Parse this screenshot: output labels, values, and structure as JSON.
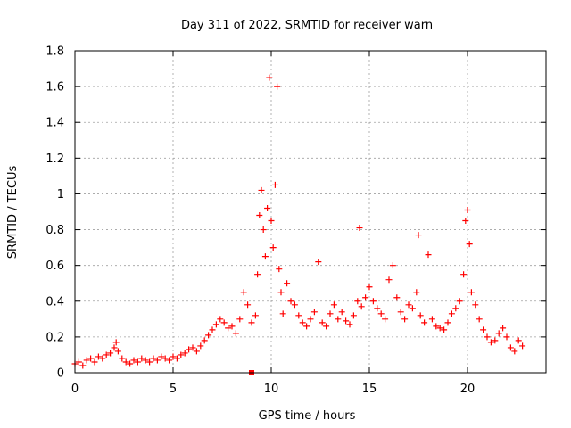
{
  "chart_data": {
    "type": "scatter",
    "title": "Day 311 of 2022, SRMTID for receiver warn",
    "xlabel": "GPS time / hours",
    "ylabel": "SRMTID / TECUs",
    "xlim": [
      0,
      24
    ],
    "ylim": [
      0,
      1.8
    ],
    "grid": true,
    "marker": "+",
    "marker_color": "#ff0000",
    "x_ticks": [
      0,
      5,
      10,
      15,
      20
    ],
    "x_tick_labels": [
      "0",
      "5",
      "10",
      "15",
      "20"
    ],
    "y_ticks": [
      0,
      0.2,
      0.4,
      0.6,
      0.8,
      1.0,
      1.2,
      1.4,
      1.6,
      1.8
    ],
    "y_tick_labels": [
      "0",
      "0.2",
      "0.4",
      "0.6",
      "0.8",
      "1",
      "1.2",
      "1.4",
      "1.6",
      "1.8"
    ],
    "series": [
      {
        "name": "SRMTID",
        "x": [
          0.0,
          0.2,
          0.4,
          0.6,
          0.8,
          1.0,
          1.2,
          1.4,
          1.6,
          1.8,
          2.0,
          2.1,
          2.2,
          2.4,
          2.6,
          2.8,
          3.0,
          3.2,
          3.4,
          3.6,
          3.8,
          4.0,
          4.2,
          4.4,
          4.6,
          4.8,
          5.0,
          5.2,
          5.4,
          5.6,
          5.8,
          6.0,
          6.2,
          6.4,
          6.6,
          6.8,
          7.0,
          7.2,
          7.4,
          7.6,
          7.8,
          8.0,
          8.2,
          8.4,
          8.6,
          8.8,
          9.0,
          9.2,
          9.3,
          9.4,
          9.5,
          9.6,
          9.7,
          9.8,
          9.9,
          10.0,
          10.1,
          10.2,
          10.3,
          10.4,
          10.5,
          10.6,
          10.8,
          11.0,
          11.2,
          11.4,
          11.6,
          11.8,
          12.0,
          12.2,
          12.4,
          12.6,
          12.8,
          13.0,
          13.2,
          13.4,
          13.6,
          13.8,
          14.0,
          14.2,
          14.4,
          14.5,
          14.6,
          14.8,
          15.0,
          15.2,
          15.4,
          15.6,
          15.8,
          16.0,
          16.2,
          16.4,
          16.6,
          16.8,
          17.0,
          17.2,
          17.4,
          17.5,
          17.6,
          17.8,
          18.0,
          18.2,
          18.4,
          18.6,
          18.8,
          19.0,
          19.2,
          19.4,
          19.6,
          19.8,
          19.9,
          20.0,
          20.1,
          20.2,
          20.4,
          20.6,
          20.8,
          21.0,
          21.2,
          21.4,
          21.6,
          21.8,
          22.0,
          22.2,
          22.4,
          22.6,
          22.8
        ],
        "y": [
          0.05,
          0.06,
          0.04,
          0.07,
          0.08,
          0.06,
          0.09,
          0.08,
          0.1,
          0.11,
          0.14,
          0.17,
          0.12,
          0.08,
          0.06,
          0.05,
          0.07,
          0.06,
          0.08,
          0.07,
          0.06,
          0.08,
          0.07,
          0.09,
          0.08,
          0.07,
          0.09,
          0.08,
          0.1,
          0.11,
          0.13,
          0.14,
          0.12,
          0.15,
          0.18,
          0.21,
          0.24,
          0.27,
          0.3,
          0.28,
          0.25,
          0.26,
          0.22,
          0.3,
          0.45,
          0.38,
          0.28,
          0.32,
          0.55,
          0.88,
          1.02,
          0.8,
          0.65,
          0.92,
          1.65,
          0.85,
          0.7,
          1.05,
          1.6,
          0.58,
          0.45,
          0.33,
          0.5,
          0.4,
          0.38,
          0.32,
          0.28,
          0.26,
          0.3,
          0.34,
          0.62,
          0.28,
          0.26,
          0.33,
          0.38,
          0.3,
          0.34,
          0.29,
          0.27,
          0.32,
          0.4,
          0.81,
          0.37,
          0.42,
          0.48,
          0.4,
          0.36,
          0.33,
          0.3,
          0.52,
          0.6,
          0.42,
          0.34,
          0.3,
          0.38,
          0.36,
          0.45,
          0.77,
          0.32,
          0.28,
          0.66,
          0.3,
          0.26,
          0.25,
          0.24,
          0.28,
          0.33,
          0.36,
          0.4,
          0.55,
          0.85,
          0.91,
          0.72,
          0.45,
          0.38,
          0.3,
          0.24,
          0.2,
          0.17,
          0.18,
          0.22,
          0.25,
          0.2,
          0.14,
          0.12,
          0.18,
          0.15
        ]
      }
    ],
    "outlier_marker": {
      "x": 9.0,
      "y": 0.0,
      "shape": "square"
    }
  }
}
